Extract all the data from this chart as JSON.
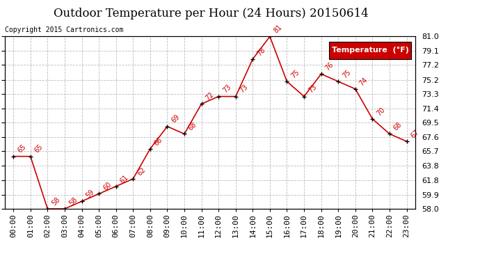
{
  "title": "Outdoor Temperature per Hour (24 Hours) 20150614",
  "copyright": "Copyright 2015 Cartronics.com",
  "legend_label": "Temperature  (°F)",
  "hours": [
    "00:00",
    "01:00",
    "02:00",
    "03:00",
    "04:00",
    "05:00",
    "06:00",
    "07:00",
    "08:00",
    "09:00",
    "10:00",
    "11:00",
    "12:00",
    "13:00",
    "14:00",
    "15:00",
    "16:00",
    "17:00",
    "18:00",
    "19:00",
    "20:00",
    "21:00",
    "22:00",
    "23:00"
  ],
  "temps": [
    65,
    65,
    58,
    58,
    59,
    60,
    61,
    62,
    66,
    69,
    68,
    72,
    73,
    73,
    78,
    81,
    75,
    73,
    76,
    75,
    74,
    70,
    68,
    67
  ],
  "ylim_min": 58.0,
  "ylim_max": 81.0,
  "yticks": [
    58.0,
    59.9,
    61.8,
    63.8,
    65.7,
    67.6,
    69.5,
    71.4,
    73.3,
    75.2,
    77.2,
    79.1,
    81.0
  ],
  "line_color": "#cc0000",
  "marker_color": "#000000",
  "label_color": "#cc0000",
  "bg_color": "#ffffff",
  "grid_color": "#aaaaaa",
  "legend_bg": "#cc0000",
  "legend_text_color": "#ffffff",
  "title_fontsize": 12,
  "copyright_fontsize": 7,
  "label_fontsize": 7,
  "axis_fontsize": 8,
  "legend_fontsize": 8
}
